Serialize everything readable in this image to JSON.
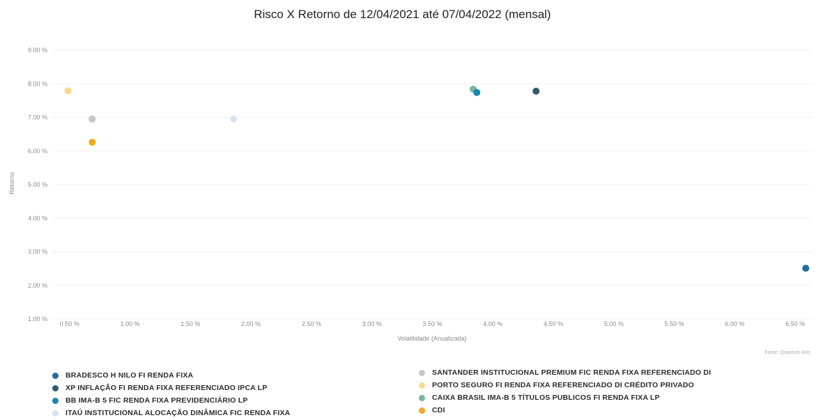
{
  "chart_data": {
    "type": "scatter",
    "title": "Risco X Retorno de 12/04/2021 até 07/04/2022 (mensal)",
    "xlabel": "Volatilidade (Anualizada)",
    "ylabel": "Retorno",
    "xlim": [
      0.38,
      6.66
    ],
    "ylim": [
      1,
      9
    ],
    "x_tick_values": [
      0.5,
      1.0,
      1.5,
      2.0,
      2.5,
      3.0,
      3.5,
      4.0,
      4.5,
      5.0,
      5.5,
      6.0,
      6.5
    ],
    "x_ticks": [
      "0.50 %",
      "1.00 %",
      "1.50 %",
      "2.00 %",
      "2.50 %",
      "3.00 %",
      "3.50 %",
      "4.00 %",
      "4.50 %",
      "5.00 %",
      "5.50 %",
      "6.00 %",
      "6.50 %"
    ],
    "y_tick_values": [
      9,
      8,
      7,
      6,
      5,
      4,
      3,
      2,
      1
    ],
    "y_ticks": [
      "9.00 %",
      "8.00 %",
      "7.00 %",
      "6.00 %",
      "5.00 %",
      "4.00 %",
      "3.00 %",
      "2.00 %",
      "1.00 %"
    ],
    "grid": "horizontal",
    "legend_position": "bottom",
    "series": [
      {
        "name": "BRADESCO H NILO FI RENDA FIXA",
        "color": "#1f6d9b",
        "x": 6.61,
        "y": 2.51
      },
      {
        "name": "XP INFLAÇÃO FI RENDA FIXA REFERENCIADO IPCA LP",
        "color": "#2e5d69",
        "x": 4.38,
        "y": 7.78
      },
      {
        "name": "BB IMA-B 5 FIC RENDA FIXA PREVIDENCIÁRIO LP",
        "color": "#1a86b3",
        "x": 3.89,
        "y": 7.74
      },
      {
        "name": "ITAÚ INSTITUCIONAL ALOCAÇÃO DINÂMICA FIC RENDA FIXA",
        "color": "#d3e3f3",
        "x": 1.88,
        "y": 6.95
      },
      {
        "name": "SANTANDER INSTITUCIONAL PREMIUM FIC RENDA FIXA REFERENCIADO DI",
        "color": "#c6c6c6",
        "x": 0.71,
        "y": 6.95
      },
      {
        "name": "PORTO SEGURO FI RENDA FIXA REFERENCIADO DI CRÉDITO PRIVADO",
        "color": "#f6d98b",
        "x": 0.51,
        "y": 7.79
      },
      {
        "name": "CAIXA BRASIL IMA-B 5 TÍTULOS PUBLICOS FI RENDA FIXA LP",
        "color": "#74b99a",
        "x": 3.86,
        "y": 7.84
      },
      {
        "name": "CDI",
        "color": "#f3a823",
        "x": 0.71,
        "y": 6.26
      }
    ]
  },
  "source": "Fonte: Quantum Axis"
}
